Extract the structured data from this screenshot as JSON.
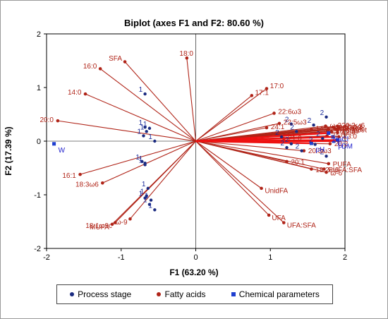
{
  "chart_data": {
    "type": "biplot",
    "title": "Biplot (axes F1 and F2: 80.60 %)",
    "xlabel": "F1 (63.20 %)",
    "ylabel": "F2 (17.39 %)",
    "xlim": [
      -2,
      2
    ],
    "ylim": [
      -2,
      2
    ],
    "x_ticks": [
      "-2",
      "-1",
      "0",
      "1",
      "2"
    ],
    "y_ticks": [
      "-2",
      "-1",
      "0",
      "1",
      "2"
    ],
    "grid": false,
    "origin_lines": true,
    "legend": {
      "position": "bottom",
      "items": [
        {
          "label": "Process stage",
          "color": "#1a2a80",
          "marker": "circle"
        },
        {
          "label": "Fatty acids",
          "color": "#b02418",
          "marker": "circle"
        },
        {
          "label": "Chemical parameters",
          "color": "#1f3fd0",
          "marker": "square"
        }
      ]
    },
    "colors": {
      "fatty_acid": "#b02418",
      "chemical": "#1f3fd0",
      "observation": "#1a2a80",
      "vector_chem": "#ee1111"
    },
    "fatty_acids": [
      {
        "label": "SFA",
        "x": -0.95,
        "y": 1.48
      },
      {
        "label": "16:0",
        "x": -1.28,
        "y": 1.35
      },
      {
        "label": "14:0",
        "x": -1.48,
        "y": 0.88
      },
      {
        "label": "18:0",
        "x": -0.12,
        "y": 1.55
      },
      {
        "label": "20:0",
        "x": -1.85,
        "y": 0.38
      },
      {
        "label": "16:1",
        "x": -1.55,
        "y": -0.62
      },
      {
        "label": "18:3ω6",
        "x": -1.25,
        "y": -0.78
      },
      {
        "label": "18:1ω9c",
        "x": -1.08,
        "y": -1.52
      },
      {
        "label": "MUFA",
        "x": -1.12,
        "y": -1.55
      },
      {
        "label": "ω-9",
        "x": -0.88,
        "y": -1.45
      },
      {
        "label": "17:0",
        "x": 0.95,
        "y": 0.98
      },
      {
        "label": "17:1",
        "x": 0.75,
        "y": 0.85
      },
      {
        "label": "22:6ω3",
        "x": 1.05,
        "y": 0.52
      },
      {
        "label": "22:5ω3",
        "x": 1.12,
        "y": 0.33
      },
      {
        "label": "24:1",
        "x": 0.95,
        "y": 0.25
      },
      {
        "label": "21:0",
        "x": 1.18,
        "y": 0.05
      },
      {
        "label": "14:1",
        "x": 1.55,
        "y": 0.22
      },
      {
        "label": "20:3ω3",
        "x": 1.45,
        "y": -0.18
      },
      {
        "label": "20:1",
        "x": 1.22,
        "y": -0.38
      },
      {
        "label": "18:2ω6",
        "x": 1.55,
        "y": -0.52
      },
      {
        "label": "UnidFA",
        "x": 0.88,
        "y": -0.88
      },
      {
        "label": "UFA",
        "x": 0.98,
        "y": -1.38
      },
      {
        "label": "UFA:SFA",
        "x": 1.18,
        "y": -1.52
      },
      {
        "label": "ω-6",
        "x": 1.75,
        "y": -0.58
      },
      {
        "label": "PUFA:SFA",
        "x": 1.72,
        "y": -0.52
      },
      {
        "label": "PUFA",
        "x": 1.78,
        "y": -0.42
      },
      {
        "label": "20:2",
        "x": 1.8,
        "y": -0.05
      },
      {
        "label": "24:0",
        "x": 1.76,
        "y": 0.1
      },
      {
        "label": "23:0",
        "x": 1.92,
        "y": 0.08
      },
      {
        "label": "12:0",
        "x": 1.9,
        "y": 0.16
      },
      {
        "label": "10:0",
        "x": 1.92,
        "y": 0.25
      },
      {
        "label": "15:0",
        "x": 1.78,
        "y": 0.22
      },
      {
        "label": "ω-3",
        "x": 1.74,
        "y": 0.28
      },
      {
        "label": "20:3ω6",
        "x": 1.9,
        "y": 0.28
      },
      {
        "label": "18:3ω3",
        "x": 1.86,
        "y": 0.24
      },
      {
        "label": "20:4ω6",
        "x": 1.88,
        "y": 0.22
      },
      {
        "label": "ω-6:ω-3",
        "x": 1.84,
        "y": 0.26
      },
      {
        "label": "18:1ω9t",
        "x": 1.9,
        "y": 0.2
      },
      {
        "label": "20:5ω3",
        "x": 1.82,
        "y": 0.18
      }
    ],
    "chemical_parameters": [
      {
        "label": "W",
        "x": -1.9,
        "y": -0.05
      },
      {
        "label": "NaCl",
        "x": 1.78,
        "y": 0.15
      },
      {
        "label": "F",
        "x": 1.84,
        "y": 0.08
      },
      {
        "label": "pH",
        "x": 1.55,
        "y": -0.04
      },
      {
        "label": "P",
        "x": 1.85,
        "y": 0.0
      },
      {
        "label": "DM",
        "x": 1.9,
        "y": 0.02
      }
    ],
    "observations": [
      {
        "label": "1",
        "x": -0.68,
        "y": 0.88
      },
      {
        "label": "1",
        "x": -0.68,
        "y": 0.26
      },
      {
        "label": "1",
        "x": -0.62,
        "y": 0.24
      },
      {
        "label": "1",
        "x": -0.66,
        "y": 0.18
      },
      {
        "label": "1",
        "x": -0.7,
        "y": 0.1
      },
      {
        "label": "1",
        "x": -0.55,
        "y": 0.0
      },
      {
        "label": "1",
        "x": -0.72,
        "y": -0.38
      },
      {
        "label": "1",
        "x": -0.68,
        "y": -0.41
      },
      {
        "label": "1",
        "x": -0.68,
        "y": -0.44
      },
      {
        "label": "1",
        "x": -0.64,
        "y": -0.88
      },
      {
        "label": "1",
        "x": -0.66,
        "y": -1.02
      },
      {
        "label": "1",
        "x": -0.68,
        "y": -1.06
      },
      {
        "label": "1",
        "x": -0.6,
        "y": -1.1
      },
      {
        "label": "1",
        "x": -0.62,
        "y": -1.18
      },
      {
        "label": "1",
        "x": -0.55,
        "y": -1.28
      },
      {
        "label": "2",
        "x": 1.28,
        "y": 0.32
      },
      {
        "label": "2",
        "x": 1.35,
        "y": 0.18
      },
      {
        "label": "2",
        "x": 1.15,
        "y": 0.08
      },
      {
        "label": "2",
        "x": 1.28,
        "y": -0.05
      },
      {
        "label": "2",
        "x": 1.22,
        "y": -0.12
      },
      {
        "label": "2",
        "x": 1.42,
        "y": -0.18
      },
      {
        "label": "2",
        "x": 1.58,
        "y": 0.3
      },
      {
        "label": "2",
        "x": 1.75,
        "y": 0.45
      },
      {
        "label": "2",
        "x": 1.7,
        "y": 0.05
      },
      {
        "label": "2",
        "x": 1.6,
        "y": -0.06
      },
      {
        "label": "2",
        "x": 1.75,
        "y": -0.28
      }
    ]
  }
}
